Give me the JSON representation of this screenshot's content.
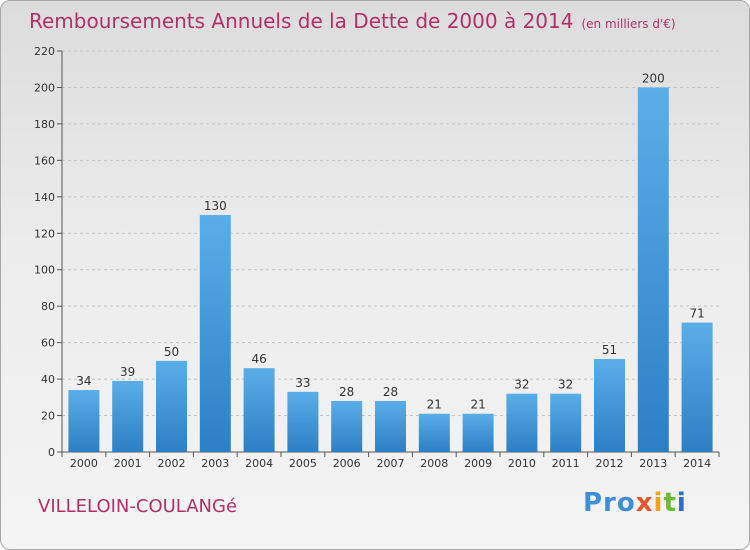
{
  "header": {
    "title": "Remboursements Annuels de la Dette de 2000 à 2014",
    "unit": "(en milliers d'€)"
  },
  "footer": {
    "commune": "VILLELOIN-COULANGé",
    "logo": [
      "Pro",
      "x",
      "i",
      "t",
      "i"
    ]
  },
  "colors": {
    "title": "#b0306a",
    "bar_top": "#5aaee8",
    "bar_bottom": "#2c7fc4"
  },
  "chart_data": {
    "type": "bar",
    "title": "Remboursements Annuels de la Dette de 2000 à 2014",
    "xlabel": "",
    "ylabel": "",
    "categories": [
      "2000",
      "2001",
      "2002",
      "2003",
      "2004",
      "2005",
      "2006",
      "2007",
      "2008",
      "2009",
      "2010",
      "2011",
      "2012",
      "2013",
      "2014"
    ],
    "values": [
      34,
      39,
      50,
      130,
      46,
      33,
      28,
      28,
      21,
      21,
      32,
      32,
      51,
      200,
      71
    ],
    "ylim": [
      0,
      220
    ],
    "yticks": [
      0,
      20,
      40,
      60,
      80,
      100,
      120,
      140,
      160,
      180,
      200,
      220
    ],
    "grid": true
  }
}
